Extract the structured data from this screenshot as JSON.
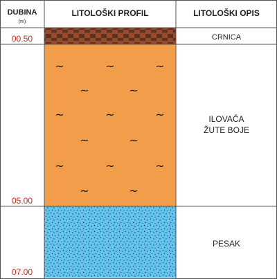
{
  "header": {
    "depth": "DUBINA",
    "depth_unit": "(m)",
    "profile": "LITOLOŠKI PROFIL",
    "description": "LITOLOŠKI OPIS"
  },
  "layers": [
    {
      "id": "crnica",
      "depth": "00.50",
      "description": [
        "CRNICA"
      ],
      "fill": "#9a4a2a",
      "pattern": "horizontal-hatch"
    },
    {
      "id": "ilovaca",
      "depth": "05.00",
      "description": [
        "ILOVAČA",
        "ŽUTE BOJE"
      ],
      "fill": "#f29d4a",
      "pattern": "tilde"
    },
    {
      "id": "pesak",
      "depth": "07.00",
      "description": [
        "PESAK"
      ],
      "fill": "#62c3ec",
      "pattern": "dots"
    }
  ],
  "symbols": {
    "tilde": "~"
  },
  "colors": {
    "depth_text": "#d62a1e",
    "grid": "#555555"
  }
}
